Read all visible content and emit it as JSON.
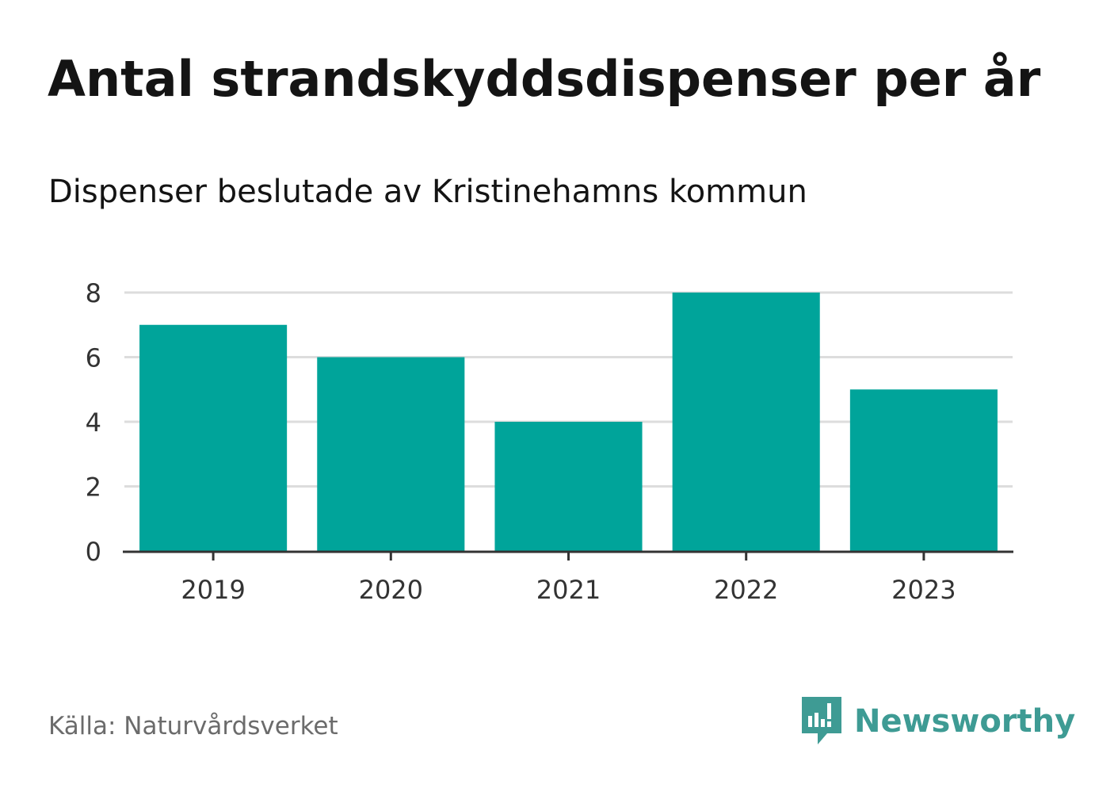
{
  "header": {
    "title": "Antal strandskyddsdispenser per år",
    "subtitle": "Dispenser beslutade av Kristinehamns kommun"
  },
  "footer": {
    "source": "Källa: Naturvårdsverket",
    "brand": "Newsworthy",
    "brand_icon": "newsworthy-logo-icon"
  },
  "colors": {
    "bar": "#00a49a",
    "gridline": "#dddddd",
    "axis": "#333333",
    "brand": "#3e9b94"
  },
  "chart_data": {
    "type": "bar",
    "title": "Antal strandskyddsdispenser per år",
    "subtitle": "Dispenser beslutade av Kristinehamns kommun",
    "categories": [
      "2019",
      "2020",
      "2021",
      "2022",
      "2023"
    ],
    "values": [
      7,
      6,
      4,
      8,
      5
    ],
    "xlabel": "",
    "ylabel": "",
    "ylim": [
      0,
      8
    ],
    "yticks": [
      0,
      2,
      4,
      6,
      8
    ],
    "grid": true,
    "legend": "none"
  }
}
